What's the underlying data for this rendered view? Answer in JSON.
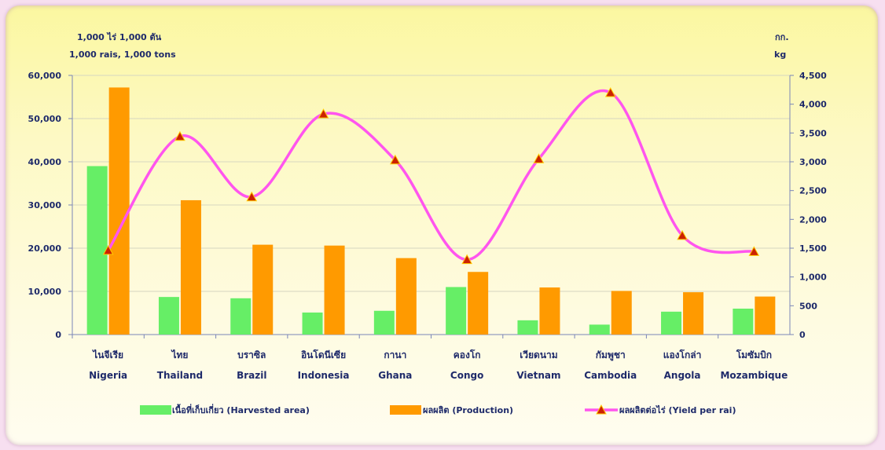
{
  "left_unit_line1": "1,000 ไร่  1,000 ตัน",
  "left_unit_line2": "1,000 rais,   1,000  tons",
  "right_unit_line1": "กก.",
  "right_unit_line2": "kg",
  "chart_data": {
    "type": "bar",
    "categories_th": [
      "ไนจีเรีย",
      "ไทย",
      "บราซิล",
      "อินโดนีเซีย",
      "กานา",
      "คองโก",
      "เวียดนาม",
      "กัมพูชา",
      "แองโกล่า",
      "โมซัมบิก"
    ],
    "categories": [
      "Nigeria",
      "Thailand",
      "Brazil",
      "Indonesia",
      "Ghana",
      "Congo",
      "Vietnam",
      "Cambodia",
      "Angola",
      "Mozambique"
    ],
    "y_ticks": [
      "0",
      "10,000",
      "20,000",
      "30,000",
      "40,000",
      "50,000",
      "60,000"
    ],
    "y2_ticks": [
      "0",
      "500",
      "1,000",
      "1,500",
      "2,000",
      "2,500",
      "3,000",
      "3,500",
      "4,000",
      "4,500"
    ],
    "ylim": [
      0,
      60000
    ],
    "y2lim": [
      0,
      4500
    ],
    "grid": true,
    "legend_position": "bottom",
    "series": [
      {
        "name": "เนื้อที่เก็บเกี่ยว  (Harvested area)",
        "type": "bar",
        "axis": "left",
        "color": "#66ee66",
        "values": [
          39000,
          8700,
          8400,
          5100,
          5500,
          11000,
          3300,
          2300,
          5300,
          6000
        ]
      },
      {
        "name": "ผลผลิต (Production)",
        "type": "bar",
        "axis": "left",
        "color": "#ff9a00",
        "values": [
          57200,
          31100,
          20800,
          20600,
          17700,
          14500,
          10900,
          10100,
          9800,
          8800
        ]
      },
      {
        "name": "ผลผลิตต่อไร่  (Yield per rai)",
        "type": "line",
        "axis": "right",
        "color": "#ff55ee",
        "marker_color": "#cc2200",
        "values": [
          1460,
          3440,
          2390,
          3830,
          3030,
          1300,
          3050,
          4200,
          1720,
          1440
        ]
      }
    ]
  }
}
